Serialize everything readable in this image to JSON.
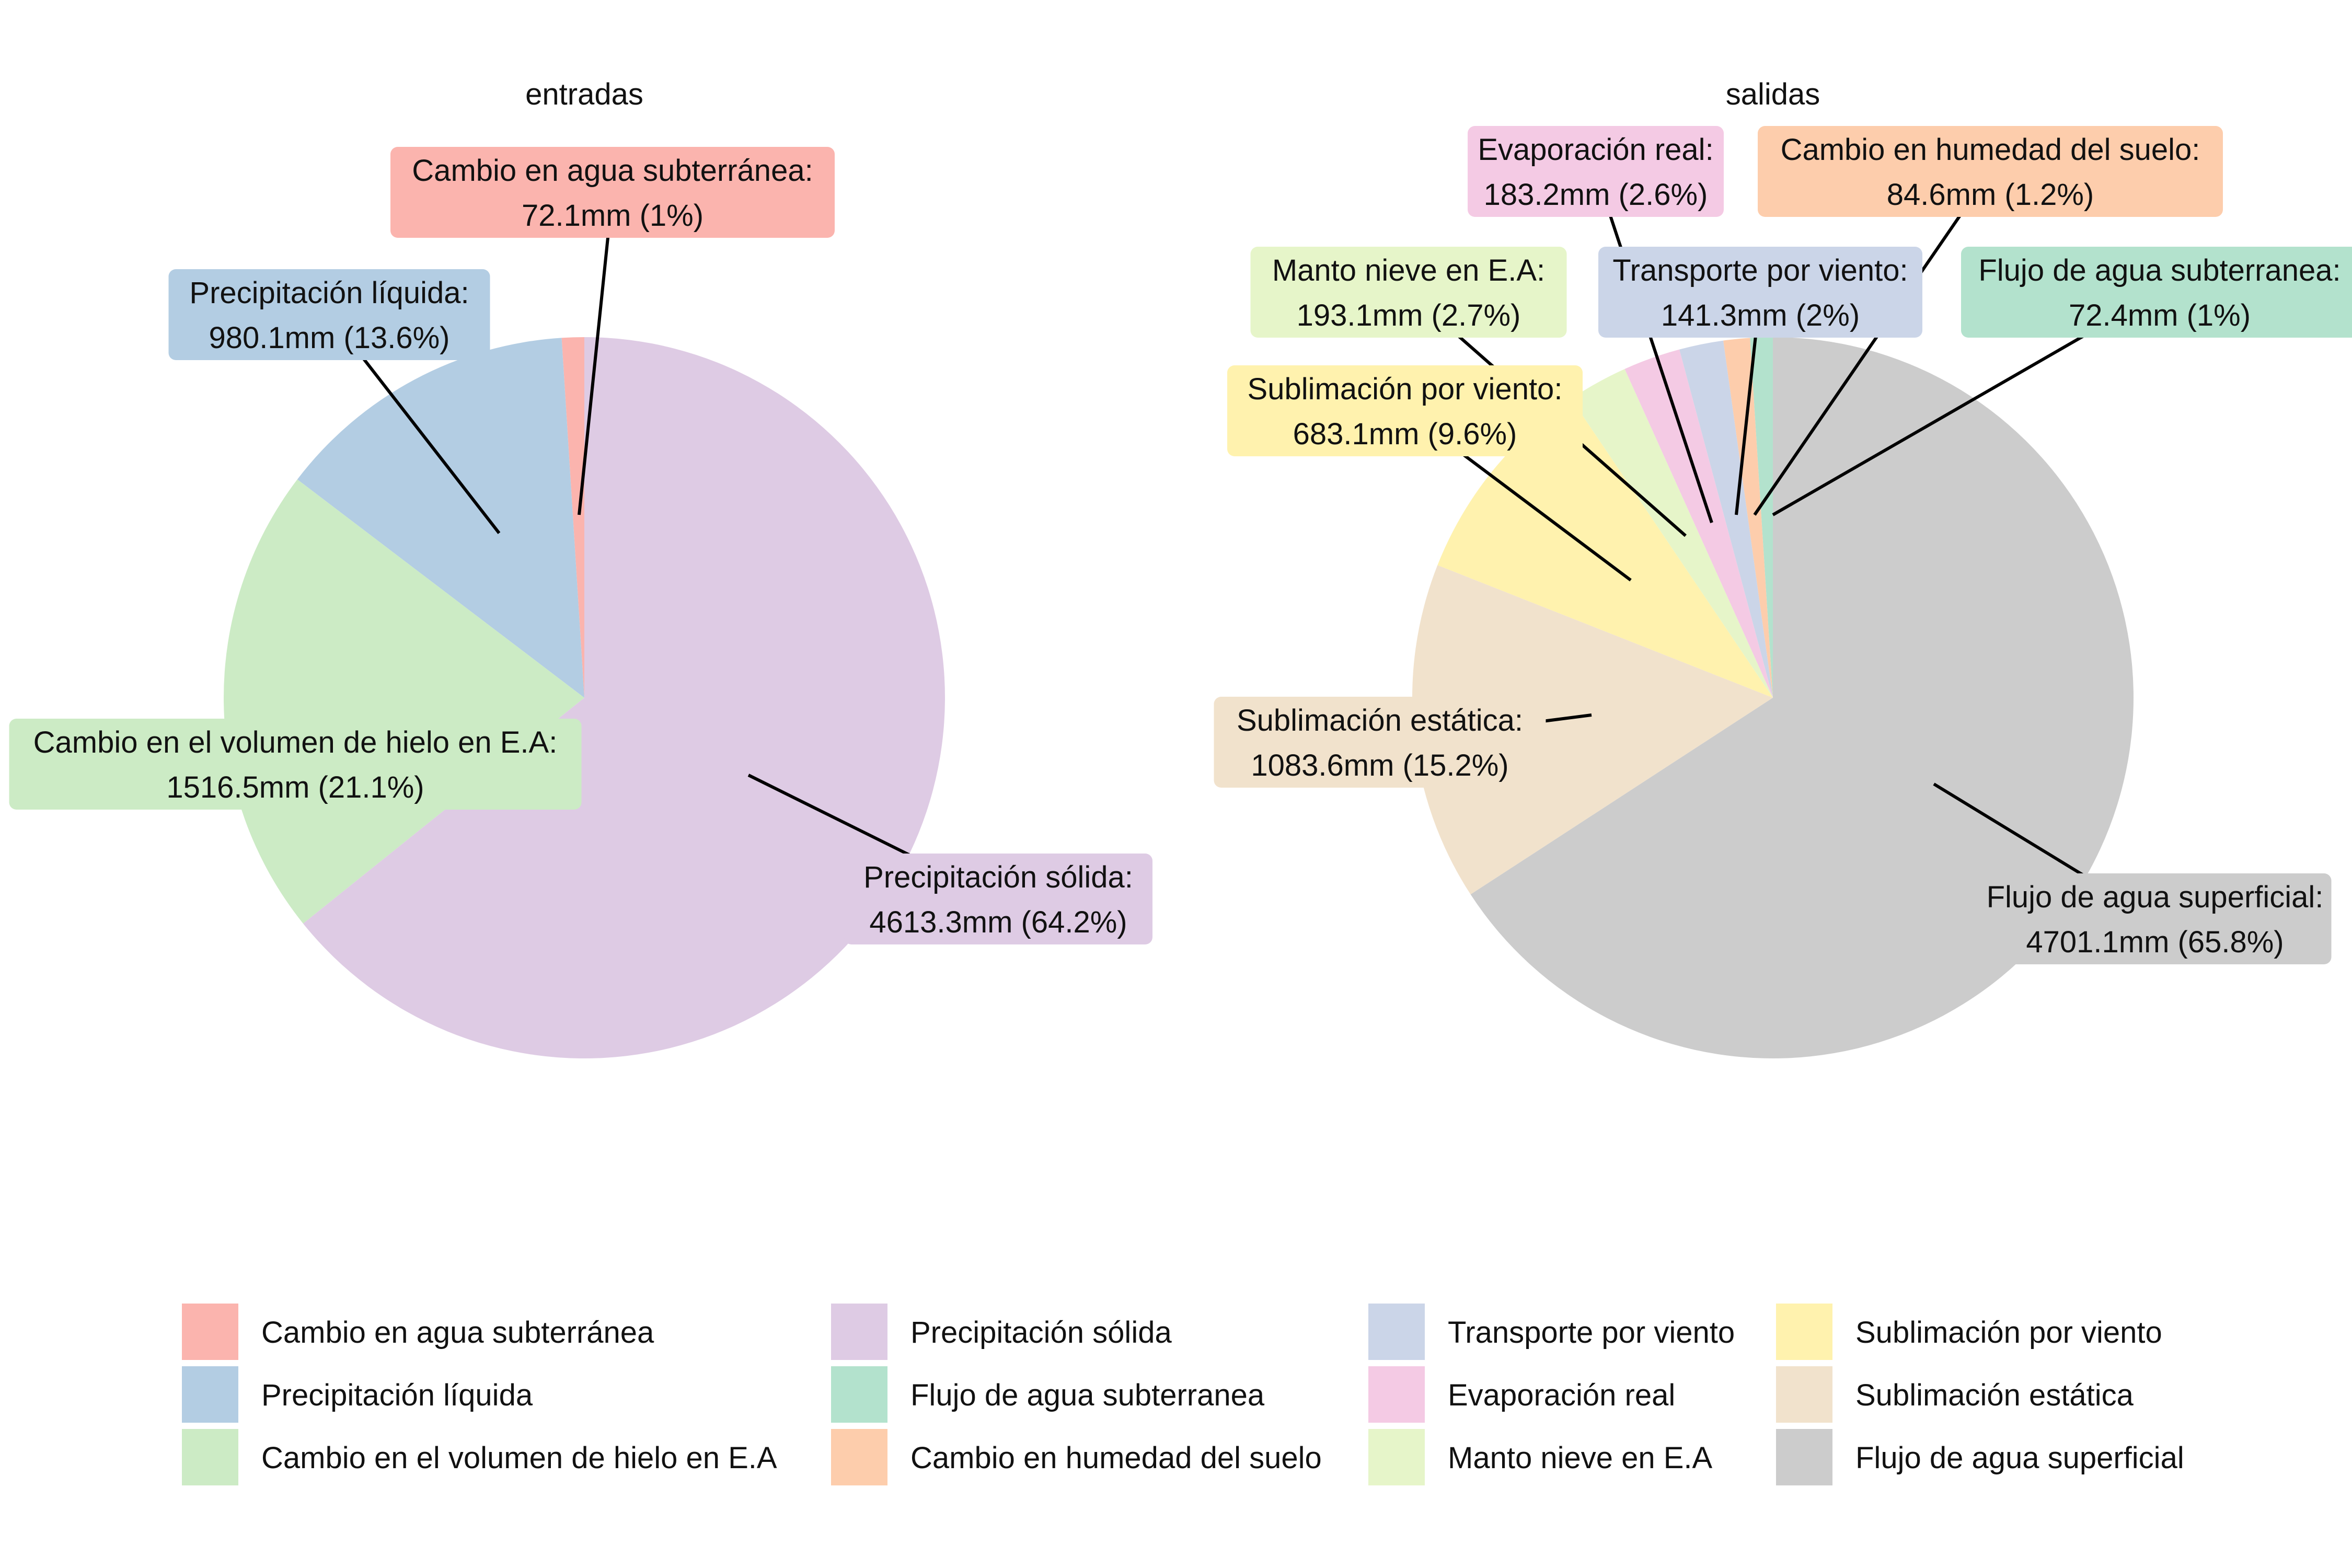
{
  "chart_data": [
    {
      "type": "pie",
      "title": "entradas",
      "unit": "mm",
      "slices": [
        {
          "name": "Cambio en agua subterránea",
          "value": 72.1,
          "label_line1": "Cambio en agua subterránea:",
          "label_line2": "72.1mm  (1%)",
          "color": "#FBB4AE"
        },
        {
          "name": "Precipitación líquida",
          "value": 980.1,
          "label_line1": "Precipitación líquida:",
          "label_line2": "980.1mm  (13.6%)",
          "color": "#B3CDE3"
        },
        {
          "name": "Cambio en el volumen de hielo en E.A",
          "value": 1516.5,
          "label_line1": "Cambio en el volumen de hielo en E.A:",
          "label_line2": "1516.5mm  (21.1%)",
          "color": "#CCEBC5"
        },
        {
          "name": "Precipitación sólida",
          "value": 4613.3,
          "label_line1": "Precipitación sólida:",
          "label_line2": "4613.3mm  (64.2%)",
          "color": "#DECBE4"
        }
      ]
    },
    {
      "type": "pie",
      "title": "salidas",
      "unit": "mm",
      "slices": [
        {
          "name": "Flujo de agua subterranea",
          "value": 72.4,
          "label_line1": "Flujo de agua subterranea:",
          "label_line2": "72.4mm  (1%)",
          "color": "#B3E2CD"
        },
        {
          "name": "Cambio en humedad del suelo",
          "value": 84.6,
          "label_line1": "Cambio en humedad del suelo:",
          "label_line2": "84.6mm  (1.2%)",
          "color": "#FDCDAC"
        },
        {
          "name": "Transporte por viento",
          "value": 141.3,
          "label_line1": "Transporte por viento:",
          "label_line2": "141.3mm  (2%)",
          "color": "#CBD5E8"
        },
        {
          "name": "Evaporación real",
          "value": 183.2,
          "label_line1": "Evaporación real:",
          "label_line2": "183.2mm  (2.6%)",
          "color": "#F4CAE4"
        },
        {
          "name": "Manto nieve en E.A",
          "value": 193.1,
          "label_line1": "Manto nieve en E.A:",
          "label_line2": "193.1mm  (2.7%)",
          "color": "#E6F5C9"
        },
        {
          "name": "Sublimación por viento",
          "value": 683.1,
          "label_line1": "Sublimación por viento:",
          "label_line2": "683.1mm  (9.6%)",
          "color": "#FFF2AE"
        },
        {
          "name": "Sublimación estática",
          "value": 1083.6,
          "label_line1": "Sublimación estática:",
          "label_line2": "1083.6mm  (15.2%)",
          "color": "#F1E2CC"
        },
        {
          "name": "Flujo de agua superficial",
          "value": 4701.1,
          "label_line1": "Flujo de agua superficial:",
          "label_line2": "4701.1mm  (65.8%)",
          "color": "#CCCCCC"
        }
      ]
    }
  ],
  "legend": {
    "position": "bottom",
    "columns": [
      [
        "Cambio en agua subterránea",
        "Precipitación líquida",
        "Cambio en el volumen de hielo en E.A"
      ],
      [
        "Precipitación sólida",
        "Flujo de agua subterranea",
        "Cambio en humedad del suelo"
      ],
      [
        "Transporte por viento",
        "Evaporación real",
        "Manto nieve en E.A"
      ],
      [
        "Sublimación por viento",
        "Sublimación estática",
        "Flujo de agua superficial"
      ]
    ]
  }
}
